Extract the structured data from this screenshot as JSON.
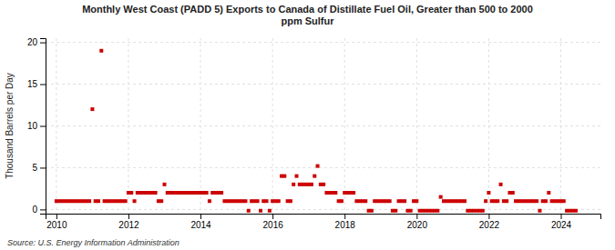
{
  "chart_data": {
    "type": "scatter",
    "title": "Monthly West Coast (PADD 5) Exports to Canada of Distillate Fuel Oil, Greater than 500 to 2000\nppm Sulfur",
    "ylabel": "Thousand Barrels per Day",
    "annotations": [
      "Source: U.S. Energy Information Administration"
    ],
    "color": "#cc0000",
    "marker": "square",
    "grid": true,
    "xlim": [
      2009.7,
      2025.1
    ],
    "xticks": [
      2010,
      2012,
      2014,
      2016,
      2018,
      2020,
      2022,
      2024
    ],
    "ylim": [
      -0.5,
      20.5
    ],
    "yticks": [
      0,
      5,
      10,
      15,
      20
    ],
    "x": [
      2010.0,
      2010.083,
      2010.167,
      2010.25,
      2010.333,
      2010.417,
      2010.5,
      2010.583,
      2010.667,
      2010.75,
      2010.833,
      2010.917,
      2011.0,
      2011.083,
      2011.167,
      2011.25,
      2011.333,
      2011.417,
      2011.5,
      2011.583,
      2011.667,
      2011.75,
      2011.833,
      2011.917,
      2012.0,
      2012.083,
      2012.167,
      2012.25,
      2012.333,
      2012.417,
      2012.5,
      2012.583,
      2012.667,
      2012.75,
      2012.833,
      2012.917,
      2013.0,
      2013.083,
      2013.167,
      2013.25,
      2013.333,
      2013.417,
      2013.5,
      2013.583,
      2013.667,
      2013.75,
      2013.833,
      2013.917,
      2014.0,
      2014.083,
      2014.167,
      2014.25,
      2014.333,
      2014.417,
      2014.5,
      2014.583,
      2014.667,
      2014.75,
      2014.833,
      2014.917,
      2015.0,
      2015.083,
      2015.167,
      2015.25,
      2015.333,
      2015.417,
      2015.5,
      2015.583,
      2015.667,
      2015.75,
      2015.833,
      2015.917,
      2016.0,
      2016.083,
      2016.167,
      2016.25,
      2016.333,
      2016.417,
      2016.5,
      2016.583,
      2016.667,
      2016.75,
      2016.833,
      2016.917,
      2017.0,
      2017.083,
      2017.167,
      2017.25,
      2017.333,
      2017.417,
      2017.5,
      2017.583,
      2017.667,
      2017.75,
      2017.833,
      2017.917,
      2018.0,
      2018.083,
      2018.167,
      2018.25,
      2018.333,
      2018.417,
      2018.5,
      2018.583,
      2018.667,
      2018.75,
      2018.833,
      2018.917,
      2019.0,
      2019.083,
      2019.167,
      2019.25,
      2019.333,
      2019.417,
      2019.5,
      2019.583,
      2019.667,
      2019.75,
      2019.833,
      2019.917,
      2020.0,
      2020.083,
      2020.167,
      2020.25,
      2020.333,
      2020.417,
      2020.5,
      2020.583,
      2020.667,
      2020.75,
      2020.833,
      2020.917,
      2021.0,
      2021.083,
      2021.167,
      2021.25,
      2021.333,
      2021.417,
      2021.5,
      2021.583,
      2021.667,
      2021.75,
      2021.833,
      2021.917,
      2022.0,
      2022.083,
      2022.167,
      2022.25,
      2022.333,
      2022.417,
      2022.5,
      2022.583,
      2022.667,
      2022.75,
      2022.833,
      2022.917,
      2023.0,
      2023.083,
      2023.167,
      2023.25,
      2023.333,
      2023.417,
      2023.5,
      2023.583,
      2023.667,
      2023.75,
      2023.833,
      2023.917,
      2024.0,
      2024.083,
      2024.167,
      2024.25,
      2024.333,
      2024.417
    ],
    "values": [
      1.0,
      1.0,
      1.0,
      1.0,
      1.0,
      1.0,
      1.0,
      1.0,
      1.0,
      1.0,
      1.0,
      1.0,
      12.0,
      1.0,
      1.0,
      19.0,
      1.0,
      1.0,
      1.0,
      1.0,
      1.0,
      1.0,
      1.0,
      1.0,
      2.0,
      2.0,
      1.0,
      2.0,
      2.0,
      2.0,
      2.0,
      2.0,
      2.0,
      2.0,
      1.0,
      1.0,
      3.0,
      2.0,
      2.0,
      2.0,
      2.0,
      2.0,
      2.0,
      2.0,
      2.0,
      2.0,
      2.0,
      2.0,
      2.0,
      2.0,
      2.0,
      1.0,
      2.0,
      2.0,
      2.0,
      2.0,
      1.0,
      1.0,
      1.0,
      1.0,
      1.0,
      1.0,
      1.0,
      1.0,
      -0.15,
      1.0,
      1.0,
      1.0,
      -0.15,
      1.0,
      1.0,
      -0.15,
      1.0,
      1.0,
      1.0,
      4.0,
      4.0,
      1.0,
      1.0,
      3.0,
      4.0,
      3.0,
      3.0,
      3.0,
      3.0,
      3.0,
      4.0,
      5.2,
      3.0,
      3.0,
      2.0,
      2.0,
      2.0,
      2.0,
      1.0,
      1.0,
      2.0,
      2.0,
      2.0,
      2.0,
      1.0,
      1.0,
      1.0,
      1.0,
      -0.15,
      -0.15,
      1.0,
      1.0,
      1.0,
      1.0,
      1.0,
      1.0,
      -0.15,
      -0.15,
      1.0,
      1.0,
      1.0,
      -0.15,
      -0.15,
      1.0,
      1.0,
      -0.15,
      -0.15,
      -0.15,
      -0.15,
      -0.15,
      -0.15,
      -0.15,
      1.5,
      1.0,
      1.0,
      1.0,
      1.0,
      1.0,
      1.0,
      1.0,
      1.0,
      -0.15,
      -0.15,
      -0.15,
      -0.15,
      -0.15,
      -0.15,
      1.0,
      2.0,
      1.0,
      1.0,
      1.0,
      3.0,
      1.0,
      1.0,
      2.0,
      2.0,
      1.0,
      1.0,
      1.0,
      1.0,
      1.0,
      1.0,
      1.0,
      1.0,
      -0.15,
      1.0,
      1.0,
      2.0,
      1.0,
      1.0,
      1.0,
      1.0,
      1.0,
      -0.15,
      -0.15,
      -0.15,
      -0.15
    ]
  }
}
